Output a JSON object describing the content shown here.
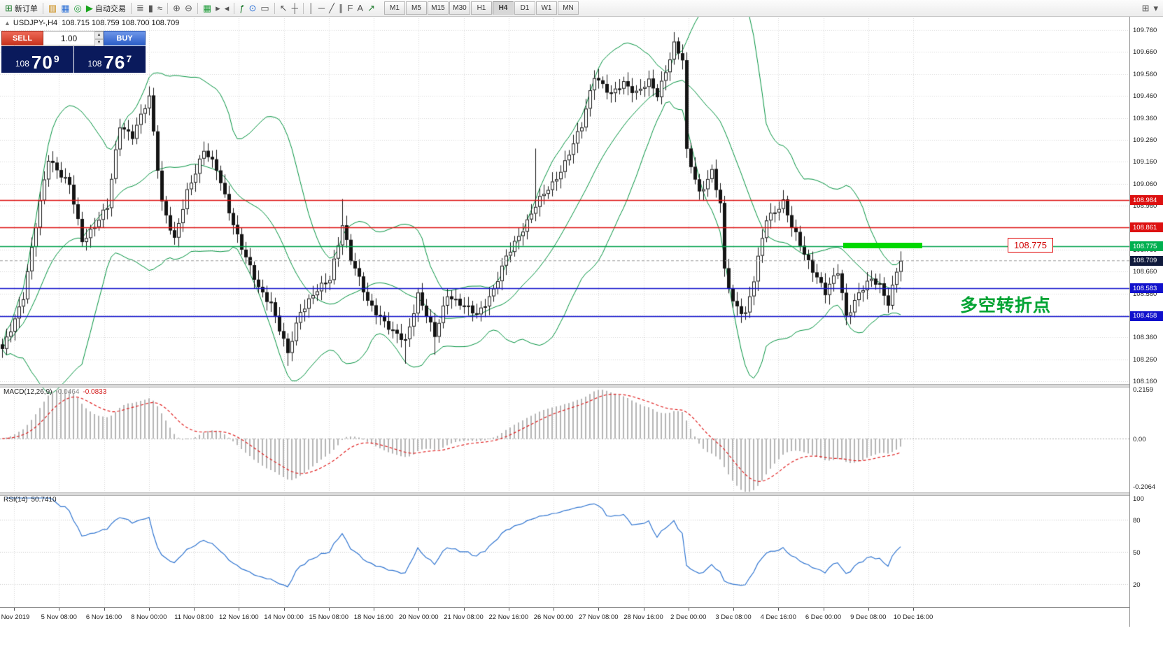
{
  "toolbar": {
    "items": [
      {
        "name": "new-order-button",
        "glyph": "⊞",
        "color": "#1d7a2c",
        "label": "新订单"
      },
      {
        "divider": true
      },
      {
        "name": "market-watch-button",
        "glyph": "▥",
        "color": "#c8860a"
      },
      {
        "name": "data-window-button",
        "glyph": "▦",
        "color": "#2a6fd6"
      },
      {
        "name": "navigator-button",
        "glyph": "◎",
        "color": "#1f9d3a"
      },
      {
        "name": "expert-advisors-button",
        "glyph": "▶",
        "color": "#18a41c",
        "label": "自动交易"
      },
      {
        "divider": true
      },
      {
        "name": "bar-chart-button",
        "glyph": "≣"
      },
      {
        "name": "candlestick-chart-button",
        "glyph": "▮"
      },
      {
        "name": "line-chart-button",
        "glyph": "≈"
      },
      {
        "divider": true
      },
      {
        "name": "zoom-in-button",
        "glyph": "⊕"
      },
      {
        "name": "zoom-out-button",
        "glyph": "⊖"
      },
      {
        "divider": true
      },
      {
        "name": "tile-windows-button",
        "glyph": "▦",
        "color": "#1f9d3a"
      },
      {
        "name": "auto-scroll-button",
        "glyph": "▸"
      },
      {
        "name": "chart-shift-button",
        "glyph": "◂"
      },
      {
        "divider": true
      },
      {
        "name": "indicators-button",
        "glyph": "ƒ",
        "color": "#1d7a2c"
      },
      {
        "name": "periods-button",
        "glyph": "⊙",
        "color": "#2a6fd6"
      },
      {
        "name": "templates-button",
        "glyph": "▭"
      },
      {
        "divider": true
      },
      {
        "name": "cursor-button",
        "glyph": "↖"
      },
      {
        "name": "crosshair-button",
        "glyph": "┼"
      },
      {
        "divider": true
      },
      {
        "name": "vertical-line-button",
        "glyph": "│"
      },
      {
        "name": "horizontal-line-button",
        "glyph": "─"
      },
      {
        "name": "trendline-button",
        "glyph": "╱"
      },
      {
        "name": "channel-button",
        "glyph": "∥"
      },
      {
        "name": "fibonacci-button",
        "glyph": "F"
      },
      {
        "name": "text-button",
        "glyph": "A"
      },
      {
        "name": "arrows-button",
        "glyph": "↗",
        "color": "#1d7a2c"
      }
    ],
    "timeframes": [
      "M1",
      "M5",
      "M15",
      "M30",
      "H1",
      "H4",
      "D1",
      "W1",
      "MN"
    ],
    "active_timeframe": "H4",
    "right_items": [
      {
        "name": "new-chart-window-button",
        "glyph": "⊞"
      },
      {
        "name": "window-list-button",
        "glyph": "▾"
      }
    ]
  },
  "symbol_header": {
    "collapse_arrow": "▲",
    "symbol": "USDJPY-,H4",
    "ohlc": "108.715 108.759 108.700 108.709"
  },
  "trade_panel": {
    "sell_label": "SELL",
    "buy_label": "BUY",
    "volume": "1.00",
    "sell_price": {
      "small": "108",
      "big": "70",
      "sup": "9"
    },
    "buy_price": {
      "small": "108",
      "big": "76",
      "sup": "7"
    }
  },
  "price_axis": {
    "ticks": [
      "109.760",
      "109.660",
      "109.560",
      "109.460",
      "109.360",
      "109.260",
      "109.160",
      "109.060",
      "108.960",
      "108.860",
      "108.760",
      "108.660",
      "108.560",
      "108.460",
      "108.360",
      "108.260",
      "108.160"
    ],
    "tags": [
      {
        "label": "108.984",
        "price": 108.984,
        "bg": "#dd1111"
      },
      {
        "label": "108.861",
        "price": 108.861,
        "bg": "#dd1111"
      },
      {
        "label": "108.775",
        "price": 108.775,
        "bg": "#00b050"
      },
      {
        "label": "108.709",
        "price": 108.709,
        "bg": "#101a3c"
      },
      {
        "label": "108.583",
        "price": 108.583,
        "bg": "#1111cc"
      },
      {
        "label": "108.458",
        "price": 108.458,
        "bg": "#1111cc"
      }
    ]
  },
  "macd_panel": {
    "name": "MACD(12,26,9)",
    "main_value": "-0.0464",
    "signal_value": "-0.0833",
    "scale_top": "0.2159",
    "scale_zero": "0.00",
    "scale_bottom": "-0.2064"
  },
  "rsi_panel": {
    "name": "RSI(14)",
    "value": "50.7410",
    "scale": [
      "100",
      "80",
      "50",
      "20"
    ]
  },
  "time_axis": {
    "labels": [
      "Nov 2019",
      "5 Nov 08:00",
      "6 Nov 16:00",
      "8 Nov 00:00",
      "11 Nov 08:00",
      "12 Nov 16:00",
      "14 Nov 00:00",
      "15 Nov 08:00",
      "18 Nov 16:00",
      "20 Nov 00:00",
      "21 Nov 08:00",
      "22 Nov 16:00",
      "26 Nov 00:00",
      "27 Nov 08:00",
      "28 Nov 16:00",
      "2 Dec 00:00",
      "3 Dec 08:00",
      "4 Dec 16:00",
      "6 Dec 00:00",
      "9 Dec 08:00",
      "10 Dec 16:00"
    ]
  },
  "annotations": {
    "price_callout": "108.775",
    "turning_point_text": "多空转折点",
    "highlight_color": "#00d800"
  },
  "chart_data": {
    "type": "candlestick",
    "symbol": "USDJPY-",
    "timeframe": "H4",
    "visible_price_range": [
      108.16,
      109.76
    ],
    "price_tick_step": 0.1,
    "candle_count": 215,
    "current_price": 108.709,
    "candle_up": "#ffffff",
    "candle_down": "#141414",
    "candle_border": "#141414",
    "horizontal_levels": [
      {
        "price": 108.984,
        "color": "#dd1111"
      },
      {
        "price": 108.861,
        "color": "#dd1111"
      },
      {
        "price": 108.775,
        "color": "#00a14b"
      },
      {
        "price": 108.583,
        "color": "#1111cc"
      },
      {
        "price": 108.458,
        "color": "#1111cc"
      }
    ],
    "price_path": [
      [
        0,
        108.3
      ],
      [
        5,
        108.55
      ],
      [
        11,
        109.18
      ],
      [
        16,
        109.05
      ],
      [
        19,
        108.8
      ],
      [
        25,
        108.95
      ],
      [
        28,
        109.33
      ],
      [
        31,
        109.28
      ],
      [
        35,
        109.45
      ],
      [
        38,
        108.98
      ],
      [
        41,
        108.8
      ],
      [
        44,
        109.02
      ],
      [
        48,
        109.22
      ],
      [
        51,
        109.12
      ],
      [
        55,
        108.88
      ],
      [
        58,
        108.72
      ],
      [
        61,
        108.58
      ],
      [
        64,
        108.52
      ],
      [
        68,
        108.28
      ],
      [
        71,
        108.48
      ],
      [
        74,
        108.56
      ],
      [
        78,
        108.62
      ],
      [
        81,
        108.88
      ],
      [
        83,
        108.72
      ],
      [
        87,
        108.52
      ],
      [
        90,
        108.46
      ],
      [
        93,
        108.38
      ],
      [
        96,
        108.34
      ],
      [
        99,
        108.56
      ],
      [
        103,
        108.36
      ],
      [
        106,
        108.56
      ],
      [
        110,
        108.5
      ],
      [
        113,
        108.46
      ],
      [
        117,
        108.58
      ],
      [
        120,
        108.72
      ],
      [
        124,
        108.86
      ],
      [
        127,
        108.96
      ],
      [
        131,
        109.06
      ],
      [
        134,
        109.16
      ],
      [
        138,
        109.32
      ],
      [
        141,
        109.56
      ],
      [
        145,
        109.46
      ],
      [
        148,
        109.52
      ],
      [
        151,
        109.48
      ],
      [
        154,
        109.52
      ],
      [
        156,
        109.46
      ],
      [
        160,
        109.7
      ],
      [
        162,
        109.62
      ],
      [
        163,
        109.2
      ],
      [
        166,
        109.02
      ],
      [
        169,
        109.12
      ],
      [
        171,
        108.96
      ],
      [
        172,
        108.66
      ],
      [
        174,
        108.52
      ],
      [
        177,
        108.47
      ],
      [
        179,
        108.62
      ],
      [
        182,
        108.9
      ],
      [
        186,
        108.98
      ],
      [
        188,
        108.86
      ],
      [
        191,
        108.74
      ],
      [
        194,
        108.64
      ],
      [
        196,
        108.56
      ],
      [
        199,
        108.66
      ],
      [
        201,
        108.46
      ],
      [
        204,
        108.56
      ],
      [
        207,
        108.62
      ],
      [
        209,
        108.6
      ],
      [
        211,
        108.52
      ],
      [
        213,
        108.66
      ],
      [
        214,
        108.709
      ]
    ],
    "wick_spikes": [
      {
        "i": 35,
        "high": 109.49
      },
      {
        "i": 68,
        "low": 108.23
      },
      {
        "i": 81,
        "high": 108.99
      },
      {
        "i": 96,
        "low": 108.24
      },
      {
        "i": 103,
        "low": 108.28
      },
      {
        "i": 127,
        "high": 109.22
      },
      {
        "i": 160,
        "high": 109.745
      }
    ],
    "indicators": {
      "bollinger": {
        "period": 20,
        "deviation": 2,
        "color": "#00923f"
      },
      "macd": {
        "fast": 12,
        "slow": 26,
        "signal": 9,
        "histogram_color": "#b4b4b4",
        "signal_color": "#e02020"
      },
      "rsi": {
        "period": 14,
        "color": "#2f74d0",
        "levels": [
          80,
          50,
          20
        ]
      }
    }
  }
}
